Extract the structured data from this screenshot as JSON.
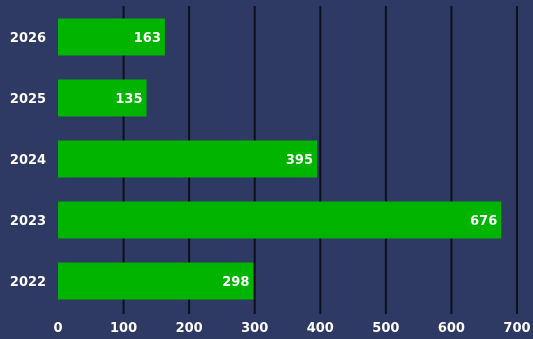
{
  "chart_data": {
    "type": "bar",
    "orientation": "horizontal",
    "categories": [
      "2026",
      "2025",
      "2024",
      "2023",
      "2022"
    ],
    "values": [
      163,
      135,
      395,
      676,
      298
    ],
    "title": "",
    "xlabel": "",
    "ylabel": "",
    "xlim": [
      0,
      700
    ],
    "x_ticks": [
      0,
      100,
      200,
      300,
      400,
      500,
      600,
      700
    ],
    "grid": "vertical",
    "legend": "none",
    "data_labels": "inside-end",
    "colors": {
      "bar": "#00b400",
      "background": "#2e3a64",
      "grid": "#0d0f1a",
      "text": "#ffffff"
    }
  }
}
